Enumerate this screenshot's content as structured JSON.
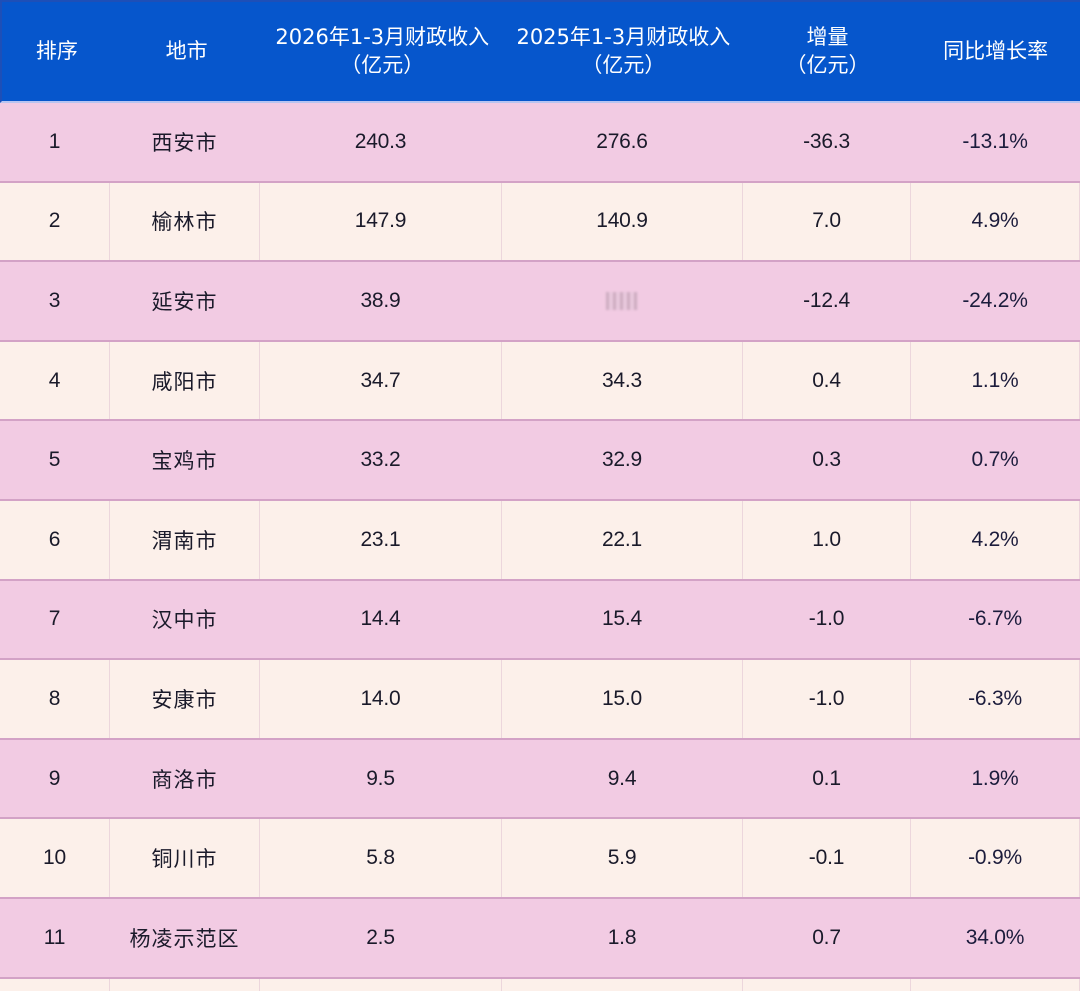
{
  "table": {
    "headers": {
      "rank": "排序",
      "city": "地市",
      "rev2026_line1": "2026年1-3月财政收入",
      "rev2026_line2": "（亿元）",
      "rev2025_line1": "2025年1-3月财政收入",
      "rev2025_line2": "（亿元）",
      "delta_line1": "增量",
      "delta_line2": "（亿元）",
      "yoy": "同比增长率"
    },
    "rows": [
      {
        "rank": "1",
        "city": "西安市",
        "rev2026": "240.3",
        "rev2025": "276.6",
        "delta": "-36.3",
        "yoy": "-13.1%"
      },
      {
        "rank": "2",
        "city": "榆林市",
        "rev2026": "147.9",
        "rev2025": "140.9",
        "delta": "7.0",
        "yoy": "4.9%"
      },
      {
        "rank": "3",
        "city": "延安市",
        "rev2026": "38.9",
        "rev2025": "",
        "delta": "-12.4",
        "yoy": "-24.2%"
      },
      {
        "rank": "4",
        "city": "咸阳市",
        "rev2026": "34.7",
        "rev2025": "34.3",
        "delta": "0.4",
        "yoy": "1.1%"
      },
      {
        "rank": "5",
        "city": "宝鸡市",
        "rev2026": "33.2",
        "rev2025": "32.9",
        "delta": "0.3",
        "yoy": "0.7%"
      },
      {
        "rank": "6",
        "city": "渭南市",
        "rev2026": "23.1",
        "rev2025": "22.1",
        "delta": "1.0",
        "yoy": "4.2%"
      },
      {
        "rank": "7",
        "city": "汉中市",
        "rev2026": "14.4",
        "rev2025": "15.4",
        "delta": "-1.0",
        "yoy": "-6.7%"
      },
      {
        "rank": "8",
        "city": "安康市",
        "rev2026": "14.0",
        "rev2025": "15.0",
        "delta": "-1.0",
        "yoy": "-6.3%"
      },
      {
        "rank": "9",
        "city": "商洛市",
        "rev2026": "9.5",
        "rev2025": "9.4",
        "delta": "0.1",
        "yoy": "1.9%"
      },
      {
        "rank": "10",
        "city": "铜川市",
        "rev2026": "5.8",
        "rev2025": "5.9",
        "delta": "-0.1",
        "yoy": "-0.9%"
      },
      {
        "rank": "11",
        "city": "杨凌示范区",
        "rev2026": "2.5",
        "rev2025": "1.8",
        "delta": "0.7",
        "yoy": "34.0%"
      }
    ]
  },
  "colors": {
    "header_bg": "#0656cc",
    "header_text": "#ffffff",
    "row_pink": "#f2cbe3",
    "row_cream": "#fcf0ea",
    "row_border": "#d3a2c6",
    "text": "#1a1a2a"
  }
}
